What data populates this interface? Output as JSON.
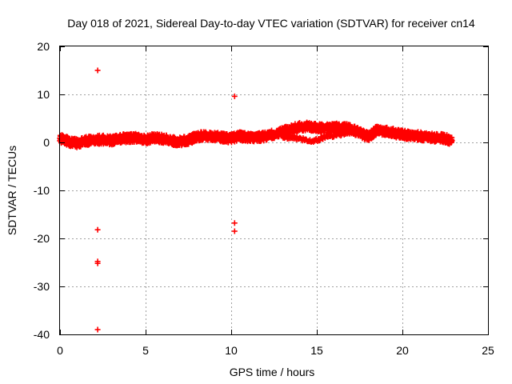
{
  "chart_data": {
    "type": "scatter",
    "title": "Day 018 of 2021, Sidereal Day-to-day VTEC variation (SDTVAR) for receiver cn14",
    "xlabel": "GPS time / hours",
    "ylabel": "SDTVAR / TECUs",
    "xlim": [
      0,
      25
    ],
    "ylim": [
      -40,
      20
    ],
    "xticks": [
      0,
      5,
      10,
      15,
      20,
      25
    ],
    "yticks": [
      -40,
      -30,
      -20,
      -10,
      0,
      10,
      20
    ],
    "xtick_labels": [
      "0",
      "5",
      "10",
      "15",
      "20",
      "25"
    ],
    "ytick_labels": [
      "-40",
      "-30",
      "-20",
      "-10",
      "0",
      "10",
      "20"
    ],
    "grid": true,
    "marker": "+",
    "color": "#ff0000",
    "series": [
      {
        "name": "cn14",
        "band_profile": [
          [
            0.0,
            0.8
          ],
          [
            0.5,
            0.2
          ],
          [
            1.0,
            -0.2
          ],
          [
            1.5,
            0.3
          ],
          [
            2.0,
            0.5
          ],
          [
            2.5,
            0.6
          ],
          [
            3.0,
            0.4
          ],
          [
            3.5,
            0.8
          ],
          [
            4.0,
            0.9
          ],
          [
            4.5,
            1.0
          ],
          [
            5.0,
            0.6
          ],
          [
            5.5,
            1.0
          ],
          [
            6.0,
            0.8
          ],
          [
            6.5,
            0.3
          ],
          [
            7.0,
            0.2
          ],
          [
            7.5,
            0.5
          ],
          [
            8.0,
            1.2
          ],
          [
            8.5,
            1.4
          ],
          [
            9.0,
            1.3
          ],
          [
            9.5,
            1.0
          ],
          [
            10.0,
            0.8
          ],
          [
            10.5,
            1.3
          ],
          [
            11.0,
            1.0
          ],
          [
            11.5,
            1.0
          ],
          [
            12.0,
            1.3
          ],
          [
            12.5,
            1.7
          ],
          [
            13.0,
            2.2
          ],
          [
            13.5,
            2.8
          ],
          [
            14.0,
            3.2
          ],
          [
            14.5,
            3.4
          ],
          [
            15.0,
            3.0
          ],
          [
            15.5,
            2.9
          ],
          [
            16.0,
            3.0
          ],
          [
            16.5,
            3.2
          ],
          [
            17.0,
            2.8
          ],
          [
            17.5,
            2.0
          ],
          [
            18.0,
            1.2
          ],
          [
            18.5,
            2.5
          ],
          [
            19.0,
            2.3
          ],
          [
            19.5,
            2.0
          ],
          [
            20.0,
            1.6
          ],
          [
            20.5,
            1.5
          ],
          [
            21.0,
            1.3
          ],
          [
            21.5,
            1.0
          ],
          [
            22.0,
            1.0
          ],
          [
            22.5,
            0.8
          ],
          [
            22.9,
            0.3
          ]
        ],
        "band_halfwidth": 0.9,
        "lower_branch": [
          [
            13.0,
            1.0
          ],
          [
            13.5,
            1.2
          ],
          [
            14.0,
            0.8
          ],
          [
            14.5,
            0.3
          ],
          [
            15.0,
            0.5
          ],
          [
            15.5,
            1.3
          ],
          [
            16.0,
            1.5
          ],
          [
            16.5,
            1.8
          ],
          [
            17.0,
            2.2
          ]
        ],
        "outliers": [
          {
            "x": 2.2,
            "y": 15.0
          },
          {
            "x": 2.2,
            "y": -18.2
          },
          {
            "x": 2.2,
            "y": -24.8
          },
          {
            "x": 2.2,
            "y": -25.2
          },
          {
            "x": 2.2,
            "y": -39.0
          },
          {
            "x": 10.2,
            "y": 9.6
          },
          {
            "x": 10.2,
            "y": -16.8
          },
          {
            "x": 10.2,
            "y": -18.5
          },
          {
            "x": 18.2,
            "y": 0.8
          }
        ]
      }
    ]
  }
}
